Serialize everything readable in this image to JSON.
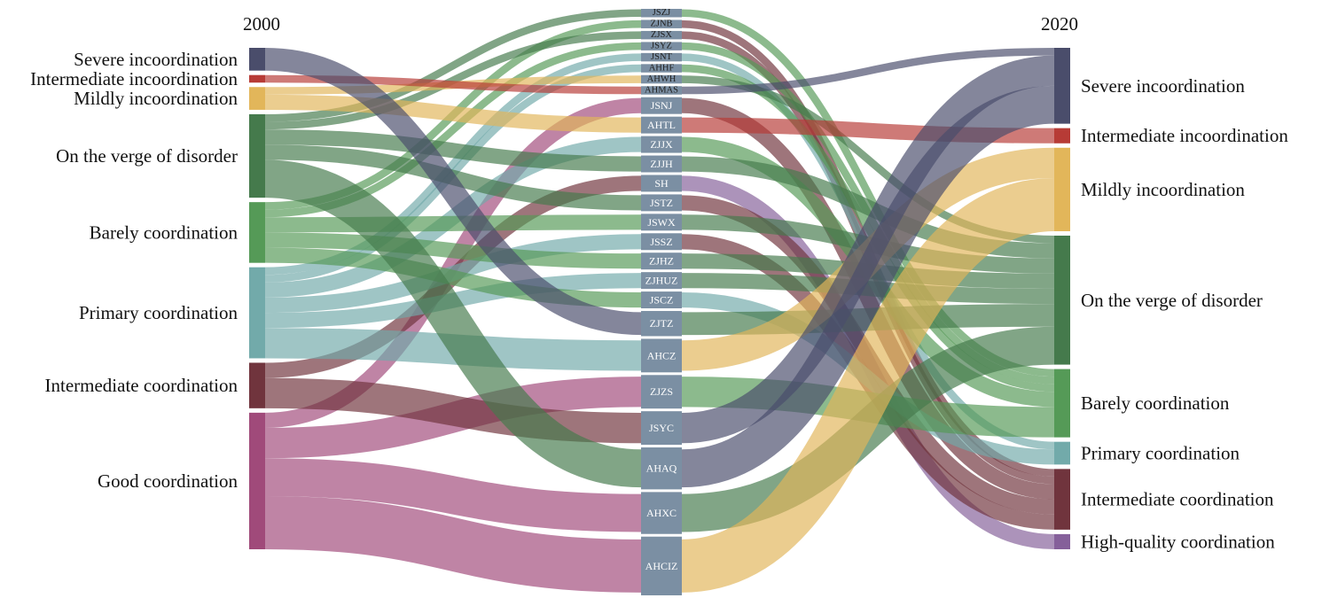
{
  "years": {
    "left": "2000",
    "right": "2020"
  },
  "categories_left": [
    {
      "key": "SI",
      "label": "Severe incoordination",
      "color": "#4a4d6b"
    },
    {
      "key": "II",
      "label": "Intermediate incoordination",
      "color": "#b73b36"
    },
    {
      "key": "MI",
      "label": "Mildly incoordination",
      "color": "#e2b65a"
    },
    {
      "key": "VD",
      "label": "On the verge of disorder",
      "color": "#457a4c"
    },
    {
      "key": "BC",
      "label": "Barely coordination",
      "color": "#559a57"
    },
    {
      "key": "PC",
      "label": "Primary coordination",
      "color": "#72aaaa"
    },
    {
      "key": "IC",
      "label": "Intermediate coordination",
      "color": "#70343d"
    },
    {
      "key": "GC",
      "label": "Good coordination",
      "color": "#a04a7a"
    }
  ],
  "categories_right": [
    {
      "key": "SI",
      "label": "Severe incoordination",
      "color": "#4a4d6b"
    },
    {
      "key": "II",
      "label": "Intermediate incoordination",
      "color": "#b73b36"
    },
    {
      "key": "MI",
      "label": "Mildly incoordination",
      "color": "#e2b65a"
    },
    {
      "key": "VD",
      "label": "On the verge of disorder",
      "color": "#457a4c"
    },
    {
      "key": "BC",
      "label": "Barely coordination",
      "color": "#559a57"
    },
    {
      "key": "PC",
      "label": "Primary coordination",
      "color": "#72aaaa"
    },
    {
      "key": "IC",
      "label": "Intermediate coordination",
      "color": "#70343d"
    },
    {
      "key": "HQ",
      "label": "High-quality coordination",
      "color": "#85609a"
    }
  ],
  "node_color": "#7b8fa3",
  "cities": [
    {
      "code": "JSZJ",
      "from": "VD",
      "to": "BC",
      "w": 1
    },
    {
      "code": "ZJNB",
      "from": "BC",
      "to": "IC",
      "w": 1
    },
    {
      "code": "ZJSX",
      "from": "VD",
      "to": "IC",
      "w": 1
    },
    {
      "code": "JSYZ",
      "from": "BC",
      "to": "BC",
      "w": 1
    },
    {
      "code": "JSNT",
      "from": "PC",
      "to": "PC",
      "w": 1
    },
    {
      "code": "AHHF",
      "from": "PC",
      "to": "BC",
      "w": 1
    },
    {
      "code": "AHWH",
      "from": "MI",
      "to": "VD",
      "w": 1
    },
    {
      "code": "AHMAS",
      "from": "II",
      "to": "SI",
      "w": 1
    },
    {
      "code": "JSNJ",
      "from": "GC",
      "to": "IC",
      "w": 2
    },
    {
      "code": "AHTL",
      "from": "MI",
      "to": "II",
      "w": 2
    },
    {
      "code": "ZJJX",
      "from": "PC",
      "to": "BC",
      "w": 2
    },
    {
      "code": "ZJJH",
      "from": "VD",
      "to": "VD",
      "w": 2
    },
    {
      "code": "SH",
      "from": "IC",
      "to": "HQ",
      "w": 2
    },
    {
      "code": "JSTZ",
      "from": "VD",
      "to": "IC",
      "w": 2
    },
    {
      "code": "JSWX",
      "from": "BC",
      "to": "VD",
      "w": 2
    },
    {
      "code": "JSSZ",
      "from": "PC",
      "to": "IC",
      "w": 2
    },
    {
      "code": "ZJHZ",
      "from": "BC",
      "to": "VD",
      "w": 2
    },
    {
      "code": "ZJHUZ",
      "from": "PC",
      "to": "VD",
      "w": 2
    },
    {
      "code": "JSCZ",
      "from": "BC",
      "to": "PC",
      "w": 2
    },
    {
      "code": "ZJTZ",
      "from": "SI",
      "to": "VD",
      "w": 3
    },
    {
      "code": "AHCZ",
      "from": "PC",
      "to": "MI",
      "w": 4
    },
    {
      "code": "ZJZS",
      "from": "GC",
      "to": "BC",
      "w": 4
    },
    {
      "code": "JSYC",
      "from": "IC",
      "to": "SI",
      "w": 4
    },
    {
      "code": "AHAQ",
      "from": "VD",
      "to": "SI",
      "w": 5
    },
    {
      "code": "AHXC",
      "from": "GC",
      "to": "VD",
      "w": 5
    },
    {
      "code": "AHCIZ",
      "from": "GC",
      "to": "MI",
      "w": 7
    }
  ]
}
